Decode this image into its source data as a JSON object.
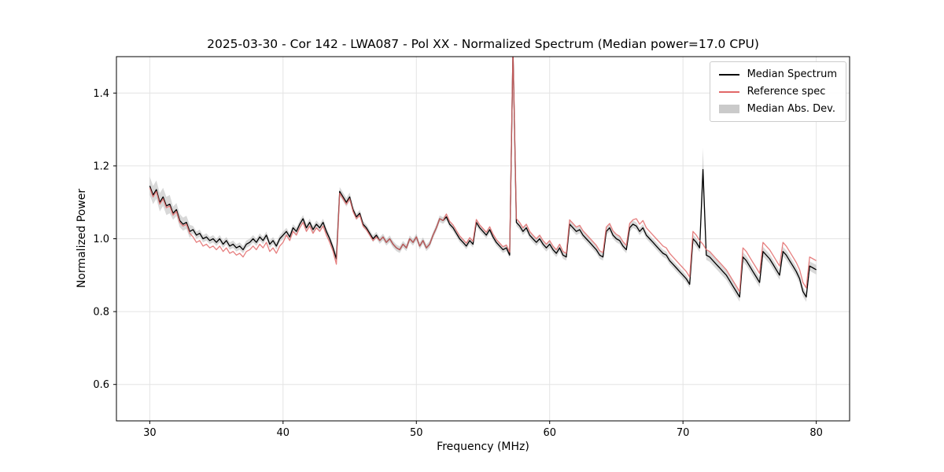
{
  "chart_data": {
    "type": "line",
    "title": "2025-03-30 - Cor 142 - LWA087 - Pol XX - Normalized Spectrum (Median power=17.0 CPU)",
    "xlabel": "Frequency (MHz)",
    "ylabel": "Normalized Power",
    "xlim": [
      27.5,
      82.5
    ],
    "ylim": [
      0.5,
      1.5
    ],
    "xticks": [
      30,
      40,
      50,
      60,
      70,
      80
    ],
    "yticks": [
      0.6,
      0.8,
      1.0,
      1.2,
      1.4
    ],
    "grid": true,
    "legend_position": "upper right",
    "x_start": 30.0,
    "x_step": 0.25,
    "series": [
      {
        "name": "Median Spectrum",
        "color": "#000000",
        "values": [
          1.145,
          1.12,
          1.135,
          1.1,
          1.115,
          1.09,
          1.095,
          1.07,
          1.08,
          1.05,
          1.04,
          1.045,
          1.02,
          1.025,
          1.01,
          1.015,
          1.0,
          1.005,
          0.995,
          1.0,
          0.99,
          1.0,
          0.985,
          0.995,
          0.98,
          0.985,
          0.975,
          0.98,
          0.97,
          0.985,
          0.99,
          1.0,
          0.99,
          1.005,
          0.995,
          1.01,
          0.985,
          0.995,
          0.98,
          1.0,
          1.01,
          1.02,
          1.005,
          1.03,
          1.02,
          1.04,
          1.055,
          1.03,
          1.045,
          1.025,
          1.04,
          1.03,
          1.045,
          1.02,
          1.0,
          0.975,
          0.945,
          1.13,
          1.115,
          1.1,
          1.115,
          1.08,
          1.06,
          1.07,
          1.04,
          1.03,
          1.015,
          1.0,
          1.01,
          0.995,
          1.005,
          0.99,
          1.0,
          0.985,
          0.975,
          0.97,
          0.985,
          0.975,
          1.0,
          0.99,
          1.005,
          0.98,
          0.995,
          0.975,
          0.985,
          1.01,
          1.03,
          1.055,
          1.05,
          1.06,
          1.04,
          1.03,
          1.015,
          1.0,
          0.99,
          0.98,
          0.995,
          0.985,
          1.045,
          1.03,
          1.02,
          1.01,
          1.025,
          1.005,
          0.99,
          0.98,
          0.97,
          0.975,
          0.955,
          1.52,
          1.045,
          1.035,
          1.02,
          1.03,
          1.01,
          1.0,
          0.99,
          1.0,
          0.985,
          0.975,
          0.985,
          0.97,
          0.96,
          0.975,
          0.955,
          0.95,
          1.04,
          1.03,
          1.02,
          1.025,
          1.01,
          1.0,
          0.99,
          0.98,
          0.97,
          0.955,
          0.95,
          1.02,
          1.03,
          1.01,
          1.0,
          0.995,
          0.98,
          0.97,
          1.03,
          1.04,
          1.035,
          1.02,
          1.03,
          1.01,
          1.0,
          0.99,
          0.98,
          0.97,
          0.96,
          0.955,
          0.94,
          0.93,
          0.92,
          0.91,
          0.9,
          0.89,
          0.875,
          1.0,
          0.99,
          0.975,
          1.19,
          0.955,
          0.95,
          0.94,
          0.93,
          0.92,
          0.91,
          0.9,
          0.885,
          0.87,
          0.855,
          0.84,
          0.95,
          0.94,
          0.925,
          0.91,
          0.895,
          0.88,
          0.965,
          0.955,
          0.945,
          0.93,
          0.915,
          0.9,
          0.965,
          0.955,
          0.94,
          0.925,
          0.91,
          0.89,
          0.855,
          0.84,
          0.925,
          0.92,
          0.915
        ]
      },
      {
        "name": "Reference spec",
        "color": "#e26868",
        "values": [
          1.14,
          1.115,
          1.13,
          1.095,
          1.11,
          1.085,
          1.09,
          1.065,
          1.075,
          1.045,
          1.035,
          1.04,
          1.015,
          1.005,
          0.99,
          0.995,
          0.98,
          0.985,
          0.975,
          0.98,
          0.97,
          0.98,
          0.965,
          0.975,
          0.96,
          0.965,
          0.955,
          0.96,
          0.95,
          0.965,
          0.97,
          0.98,
          0.97,
          0.985,
          0.975,
          0.99,
          0.965,
          0.975,
          0.96,
          0.98,
          0.99,
          1.01,
          0.995,
          1.02,
          1.01,
          1.03,
          1.045,
          1.02,
          1.035,
          1.015,
          1.03,
          1.02,
          1.035,
          1.01,
          0.99,
          0.965,
          0.93,
          1.125,
          1.11,
          1.095,
          1.11,
          1.075,
          1.055,
          1.065,
          1.035,
          1.025,
          1.01,
          0.995,
          1.005,
          0.995,
          1.005,
          0.99,
          1.0,
          0.985,
          0.975,
          0.97,
          0.985,
          0.975,
          1.0,
          0.99,
          1.005,
          0.98,
          0.995,
          0.975,
          0.985,
          1.01,
          1.03,
          1.055,
          1.05,
          1.068,
          1.048,
          1.038,
          1.023,
          1.008,
          0.998,
          0.988,
          1.003,
          0.993,
          1.053,
          1.038,
          1.028,
          1.018,
          1.033,
          1.013,
          0.998,
          0.988,
          0.978,
          0.983,
          0.963,
          1.52,
          1.055,
          1.045,
          1.03,
          1.04,
          1.02,
          1.01,
          1.0,
          1.01,
          0.995,
          0.985,
          0.995,
          0.98,
          0.97,
          0.985,
          0.965,
          0.96,
          1.052,
          1.042,
          1.032,
          1.037,
          1.022,
          1.012,
          1.002,
          0.992,
          0.982,
          0.967,
          0.962,
          1.032,
          1.042,
          1.022,
          1.012,
          1.007,
          0.992,
          0.982,
          1.042,
          1.052,
          1.055,
          1.04,
          1.05,
          1.03,
          1.02,
          1.01,
          1.0,
          0.99,
          0.98,
          0.975,
          0.96,
          0.95,
          0.94,
          0.93,
          0.92,
          0.91,
          0.895,
          1.02,
          1.01,
          0.995,
          0.985,
          0.97,
          0.965,
          0.955,
          0.945,
          0.935,
          0.925,
          0.915,
          0.9,
          0.885,
          0.87,
          0.855,
          0.975,
          0.965,
          0.95,
          0.935,
          0.92,
          0.905,
          0.99,
          0.98,
          0.97,
          0.955,
          0.94,
          0.925,
          0.99,
          0.98,
          0.965,
          0.95,
          0.935,
          0.915,
          0.88,
          0.865,
          0.95,
          0.945,
          0.94
        ]
      }
    ],
    "band": {
      "name": "Median Abs. Dev.",
      "center_series": "Median Spectrum",
      "color": "#a8a8a8",
      "opacity": 0.45,
      "half_width": [
        0.025,
        0.025,
        0.025,
        0.025,
        0.025,
        0.025,
        0.025,
        0.018,
        0.018,
        0.018,
        0.018,
        0.018,
        0.018,
        0.01,
        0.01,
        0.01,
        0.01,
        0.01,
        0.01,
        0.01,
        0.01,
        0.01,
        0.01,
        0.01,
        0.01,
        0.01,
        0.01,
        0.01,
        0.01,
        0.01,
        0.01,
        0.01,
        0.01,
        0.01,
        0.01,
        0.01,
        0.01,
        0.01,
        0.01,
        0.01,
        0.01,
        0.01,
        0.01,
        0.01,
        0.01,
        0.01,
        0.01,
        0.01,
        0.01,
        0.01,
        0.01,
        0.01,
        0.01,
        0.01,
        0.01,
        0.01,
        0.01,
        0.012,
        0.012,
        0.012,
        0.012,
        0.009,
        0.009,
        0.009,
        0.009,
        0.009,
        0.009,
        0.009,
        0.009,
        0.009,
        0.009,
        0.009,
        0.009,
        0.009,
        0.009,
        0.009,
        0.009,
        0.009,
        0.009,
        0.009,
        0.009,
        0.009,
        0.009,
        0.009,
        0.009,
        0.009,
        0.009,
        0.009,
        0.009,
        0.009,
        0.009,
        0.009,
        0.009,
        0.009,
        0.009,
        0.009,
        0.009,
        0.009,
        0.009,
        0.009,
        0.009,
        0.009,
        0.009,
        0.009,
        0.009,
        0.009,
        0.009,
        0.009,
        0.009,
        0.01,
        0.01,
        0.01,
        0.01,
        0.01,
        0.01,
        0.01,
        0.01,
        0.01,
        0.01,
        0.01,
        0.01,
        0.01,
        0.01,
        0.01,
        0.01,
        0.01,
        0.01,
        0.01,
        0.01,
        0.01,
        0.01,
        0.01,
        0.01,
        0.01,
        0.01,
        0.01,
        0.01,
        0.01,
        0.01,
        0.01,
        0.01,
        0.01,
        0.01,
        0.01,
        0.01,
        0.01,
        0.01,
        0.01,
        0.01,
        0.01,
        0.01,
        0.01,
        0.01,
        0.01,
        0.01,
        0.01,
        0.01,
        0.01,
        0.01,
        0.01,
        0.01,
        0.01,
        0.01,
        0.012,
        0.012,
        0.012,
        0.06,
        0.013,
        0.013,
        0.013,
        0.013,
        0.013,
        0.013,
        0.013,
        0.013,
        0.013,
        0.013,
        0.013,
        0.013,
        0.013,
        0.013,
        0.013,
        0.013,
        0.013,
        0.013,
        0.013,
        0.013,
        0.013,
        0.013,
        0.013,
        0.013,
        0.013,
        0.013,
        0.013,
        0.013,
        0.013,
        0.013,
        0.013,
        0.013,
        0.013,
        0.013
      ]
    },
    "legend": [
      {
        "label": "Median Spectrum",
        "type": "line",
        "color": "#000000"
      },
      {
        "label": "Reference spec",
        "type": "line",
        "color": "#e26868"
      },
      {
        "label": "Median Abs. Dev.",
        "type": "patch",
        "color": "#b8b8b8"
      }
    ]
  }
}
